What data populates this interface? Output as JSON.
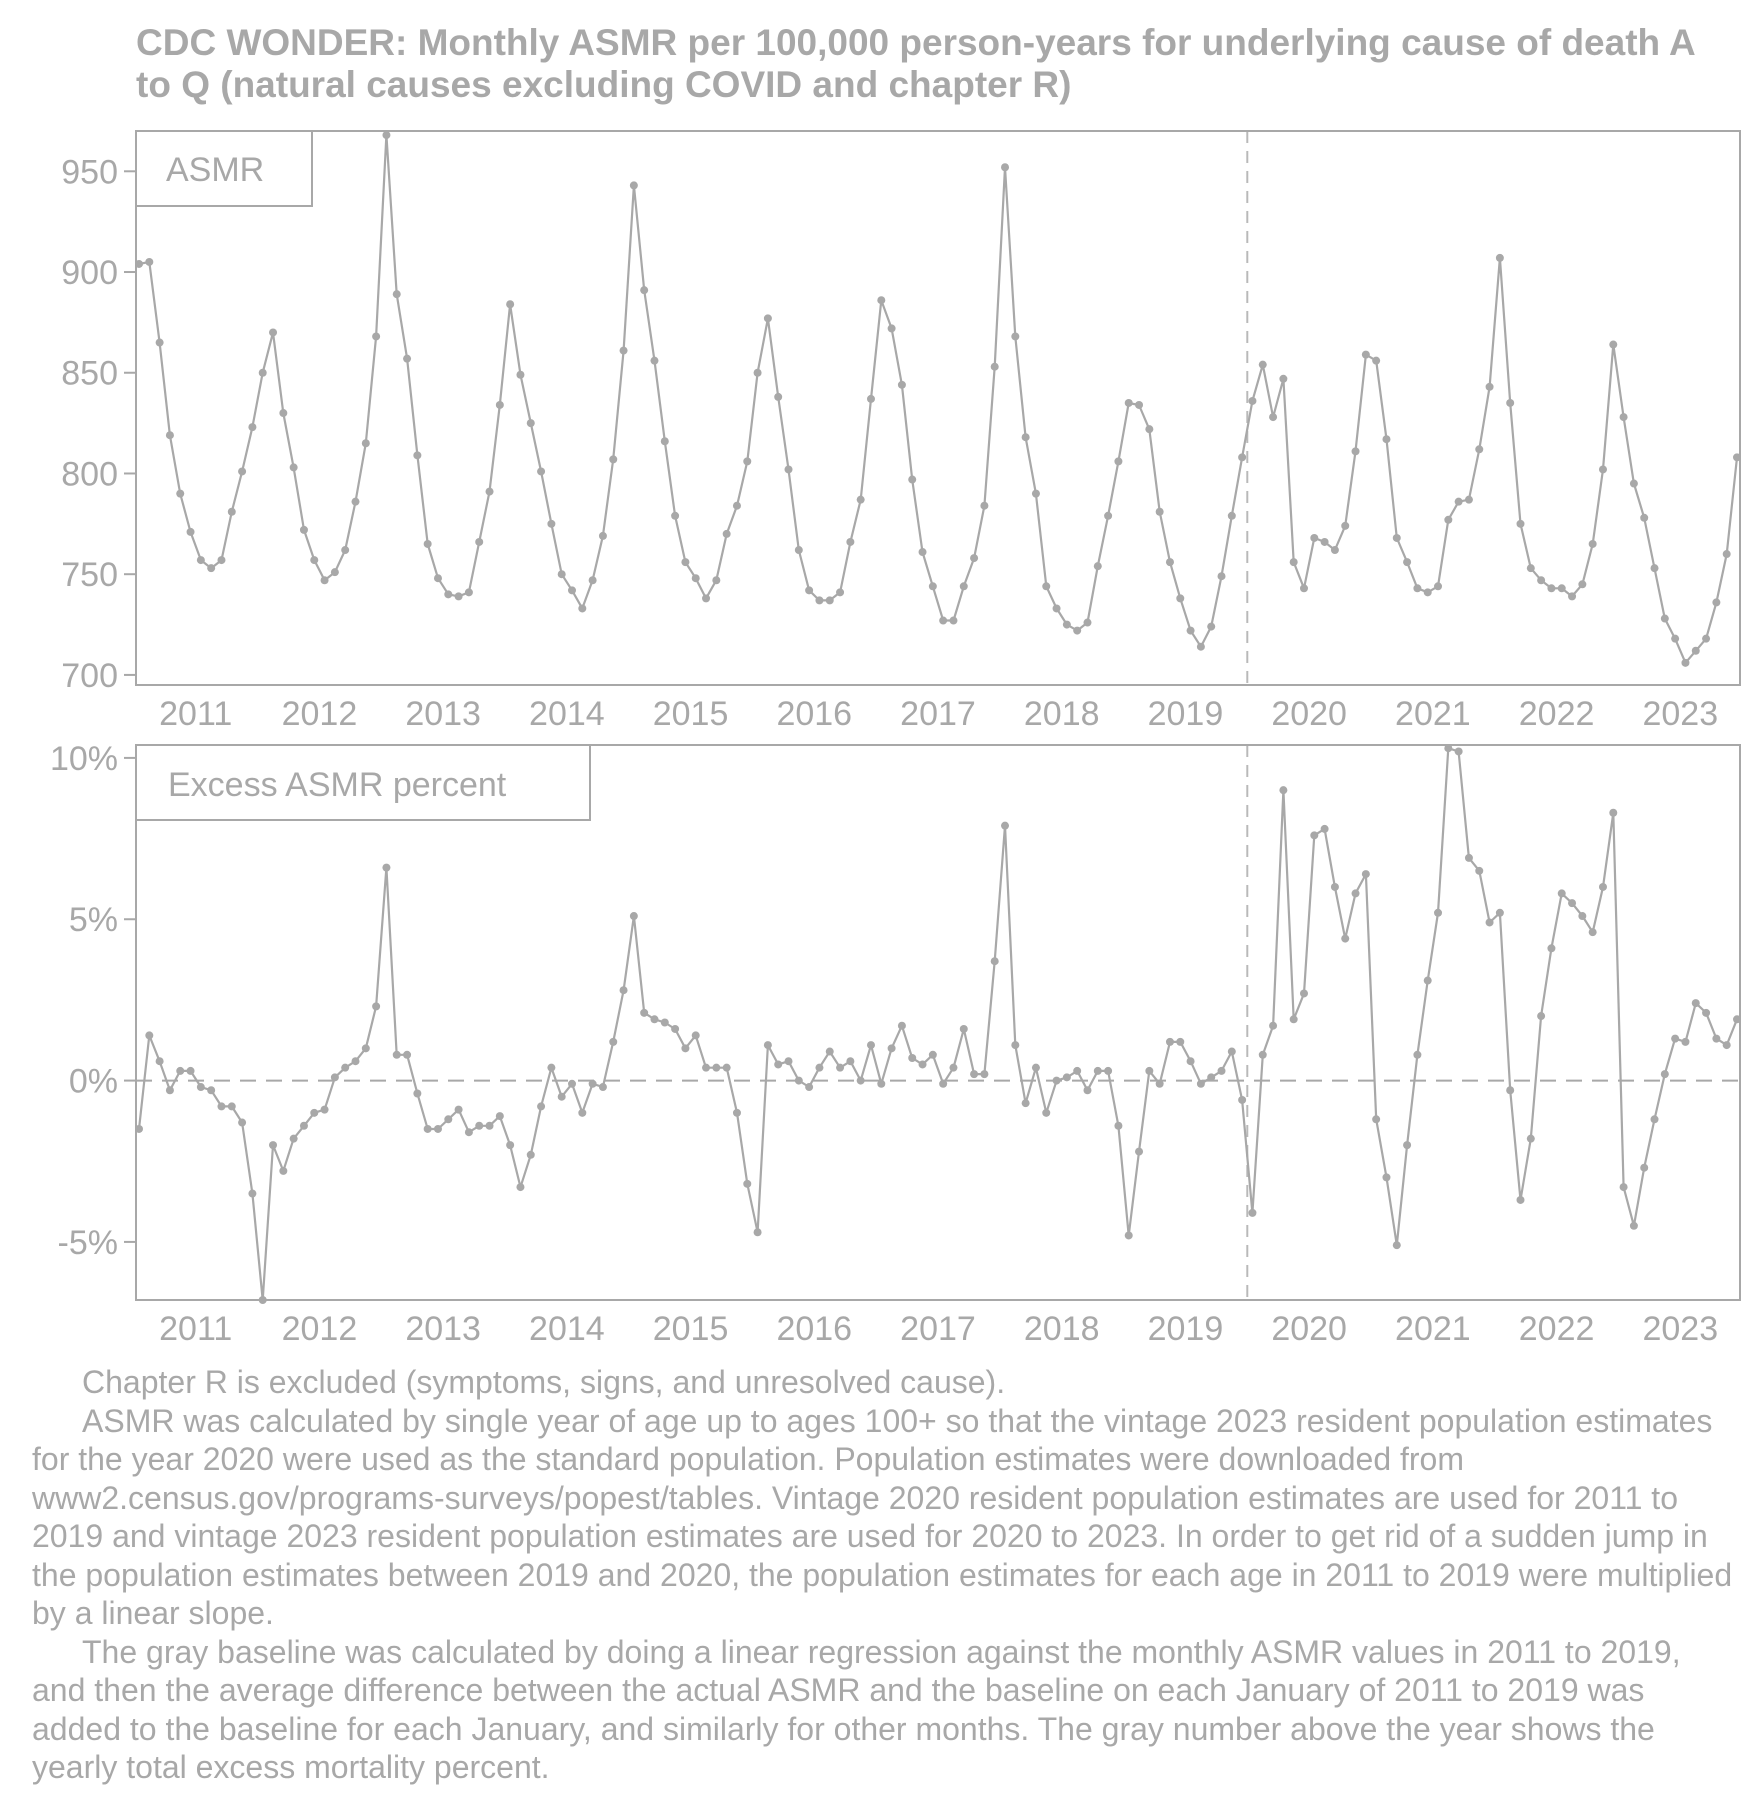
{
  "title": "CDC WONDER: Monthly ASMR per 100,000 person-years for underlying cause of death A to Q (natural causes excluding COVID and chapter R)",
  "colors": {
    "line": "#a8a8a8",
    "frame": "#a8a8a8",
    "text": "#a8a8a8",
    "background": "#ffffff"
  },
  "chart_data": [
    {
      "type": "line",
      "label": "ASMR",
      "x_start": "2011-01",
      "x_end": "2023-12",
      "x_ticks": [
        "2011",
        "2012",
        "2013",
        "2014",
        "2015",
        "2016",
        "2017",
        "2018",
        "2019",
        "2020",
        "2021",
        "2022",
        "2023"
      ],
      "ylim": [
        695,
        970
      ],
      "y_ticks": [
        700,
        750,
        800,
        850,
        900,
        950
      ],
      "y_tick_labels": [
        "700",
        "750",
        "800",
        "850",
        "900",
        "950"
      ],
      "vline_at": "2020-01",
      "values": [
        904,
        905,
        865,
        819,
        790,
        771,
        757,
        753,
        757,
        781,
        801,
        823,
        850,
        870,
        830,
        803,
        772,
        757,
        747,
        751,
        762,
        786,
        815,
        868,
        968,
        889,
        857,
        809,
        765,
        748,
        740,
        739,
        741,
        766,
        791,
        834,
        884,
        849,
        825,
        801,
        775,
        750,
        742,
        733,
        747,
        769,
        807,
        861,
        943,
        891,
        856,
        816,
        779,
        756,
        748,
        738,
        747,
        770,
        784,
        806,
        850,
        877,
        838,
        802,
        762,
        742,
        737,
        737,
        741,
        766,
        787,
        837,
        886,
        872,
        844,
        797,
        761,
        744,
        727,
        727,
        744,
        758,
        784,
        853,
        952,
        868,
        818,
        790,
        744,
        733,
        725,
        722,
        726,
        754,
        779,
        806,
        835,
        834,
        822,
        781,
        756,
        738,
        722,
        714,
        724,
        749,
        779,
        808,
        836,
        854,
        828,
        847,
        756,
        743,
        768,
        766,
        762,
        774,
        811,
        859,
        856,
        817,
        768,
        756,
        743,
        741,
        744,
        777,
        786,
        787,
        812,
        843,
        907,
        835,
        775,
        753,
        747,
        743,
        743,
        739,
        745,
        765,
        802,
        864,
        828,
        795,
        778,
        753,
        728,
        718,
        706,
        712,
        718,
        736,
        760,
        808
      ]
    },
    {
      "type": "line",
      "label": "Excess ASMR percent",
      "x_start": "2011-01",
      "x_end": "2023-12",
      "x_ticks": [
        "2011",
        "2012",
        "2013",
        "2014",
        "2015",
        "2016",
        "2017",
        "2018",
        "2019",
        "2020",
        "2021",
        "2022",
        "2023"
      ],
      "ylim": [
        -6.8,
        10.4
      ],
      "y_ticks": [
        -5,
        0,
        5,
        10
      ],
      "y_tick_labels": [
        "-5%",
        "0%",
        "5%",
        "10%"
      ],
      "hline_at": 0,
      "vline_at": "2020-01",
      "values": [
        -1.5,
        1.4,
        0.6,
        -0.3,
        0.3,
        0.3,
        -0.2,
        -0.3,
        -0.8,
        -0.8,
        -1.3,
        -3.5,
        -6.8,
        -2.0,
        -2.8,
        -1.8,
        -1.4,
        -1.0,
        -0.9,
        0.1,
        0.4,
        0.6,
        1.0,
        2.3,
        6.6,
        0.8,
        0.8,
        -0.4,
        -1.5,
        -1.5,
        -1.2,
        -0.9,
        -1.6,
        -1.4,
        -1.4,
        -1.1,
        -2.0,
        -3.3,
        -2.3,
        -0.8,
        0.4,
        -0.5,
        -0.1,
        -1.0,
        -0.1,
        -0.2,
        1.2,
        2.8,
        5.1,
        2.1,
        1.9,
        1.8,
        1.6,
        1.0,
        1.4,
        0.4,
        0.4,
        0.4,
        -1.0,
        -3.2,
        -4.7,
        1.1,
        0.5,
        0.6,
        0.0,
        -0.2,
        0.4,
        0.9,
        0.4,
        0.6,
        0.0,
        1.1,
        -0.1,
        1.0,
        1.7,
        0.7,
        0.5,
        0.8,
        -0.1,
        0.4,
        1.6,
        0.2,
        0.2,
        3.7,
        7.9,
        1.1,
        -0.7,
        0.4,
        -1.0,
        0.0,
        0.1,
        0.3,
        -0.3,
        0.3,
        0.3,
        -1.4,
        -4.8,
        -2.2,
        0.3,
        -0.1,
        1.2,
        1.2,
        0.6,
        -0.1,
        0.1,
        0.3,
        0.9,
        -0.6,
        -4.1,
        0.8,
        1.7,
        9.0,
        1.9,
        2.7,
        7.6,
        7.8,
        6.0,
        4.4,
        5.8,
        6.4,
        -1.2,
        -3.0,
        -5.1,
        -2.0,
        0.8,
        3.1,
        5.2,
        10.3,
        10.2,
        6.9,
        6.5,
        4.9,
        5.2,
        -0.3,
        -3.7,
        -1.8,
        2.0,
        4.1,
        5.8,
        5.5,
        5.1,
        4.6,
        6.0,
        8.3,
        -3.3,
        -4.5,
        -2.7,
        -1.2,
        0.2,
        1.3,
        1.2,
        2.4,
        2.1,
        1.3,
        1.1,
        1.9
      ]
    }
  ],
  "notes": [
    "Chapter R is excluded (symptoms, signs, and unresolved cause).",
    "ASMR was calculated by single year of age up to ages 100+ so that the vintage 2023 resident population estimates for the year 2020 were used as the standard population. Population estimates were downloaded from www2.census.gov/programs-surveys/popest/tables. Vintage 2020 resident population estimates are used for 2011 to 2019 and vintage 2023 resident population estimates are used for 2020 to 2023. In order to get rid of a sudden jump in the population estimates between 2019 and 2020, the population estimates for each age in 2011 to 2019 were multiplied by a linear slope.",
    "The gray baseline was calculated by doing a linear regression against the monthly ASMR values in 2011 to 2019, and then the average difference between the actual ASMR and the baseline on each January of 2011 to 2019 was added to the baseline for each January, and similarly for other months. The gray number above the year shows the yearly total excess mortality percent."
  ]
}
